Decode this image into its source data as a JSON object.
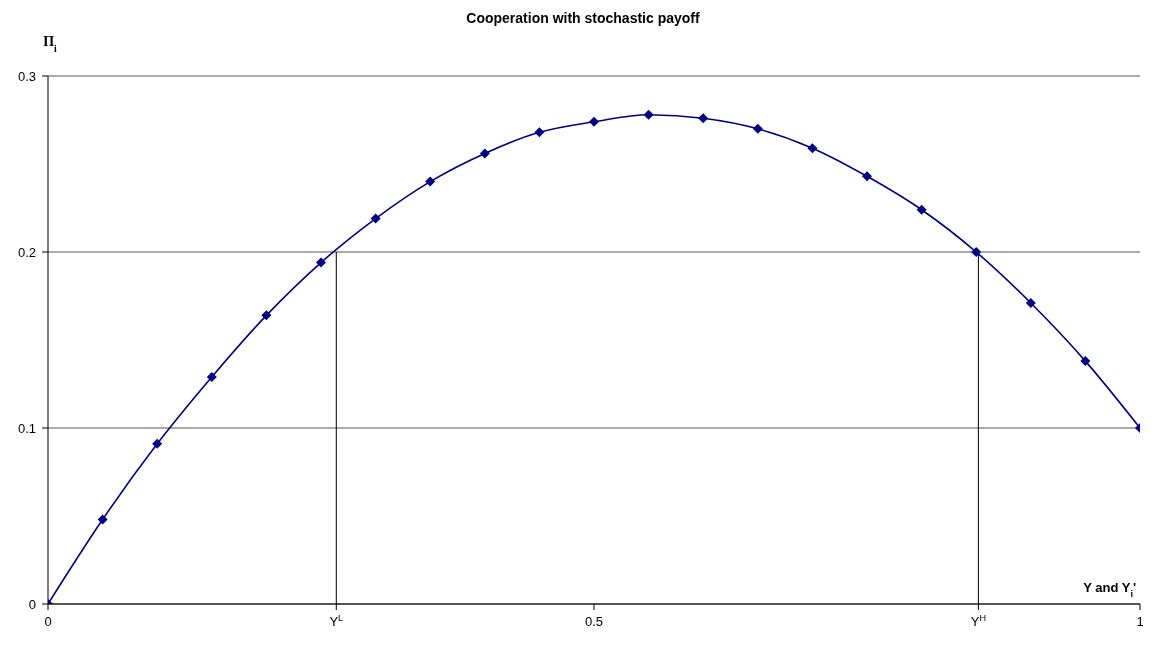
{
  "chart_data": {
    "type": "line",
    "title": "Cooperation with stochastic payoff",
    "xlabel": "Y and Y$_{i}$'",
    "ylabel": "Π$_{i}$",
    "xlim": [
      0,
      1
    ],
    "xticks": [
      0,
      {
        "value": 0.264,
        "label": "Y$^{L}$"
      },
      0.5,
      {
        "value": 0.852,
        "label": "Y$^{H}$"
      },
      1
    ],
    "ylim": [
      0,
      0.3
    ],
    "yticks": [
      0,
      0.1,
      0.2,
      0.3
    ],
    "grid": "y",
    "series": [
      {
        "color": "#000080",
        "marker": "diamond",
        "x": [
          0,
          0.05,
          0.1,
          0.15,
          0.2,
          0.25,
          0.3,
          0.35,
          0.4,
          0.45,
          0.5,
          0.55,
          0.6,
          0.65,
          0.7,
          0.75,
          0.8,
          0.85,
          0.9,
          0.95,
          1
        ],
        "values": [
          0,
          0.048,
          0.091,
          0.129,
          0.164,
          0.194,
          0.219,
          0.24,
          0.256,
          0.268,
          0.274,
          0.278,
          0.276,
          0.27,
          0.259,
          0.243,
          0.224,
          0.2,
          0.171,
          0.138,
          0.1
        ]
      },
      {
        "color": "#000000",
        "marker": "none",
        "x": [
          0.264,
          0.264
        ],
        "values": [
          0,
          0.2
        ]
      },
      {
        "color": "#000000",
        "marker": "none",
        "x": [
          0.852,
          0.852
        ],
        "values": [
          0,
          0.2
        ]
      }
    ]
  }
}
